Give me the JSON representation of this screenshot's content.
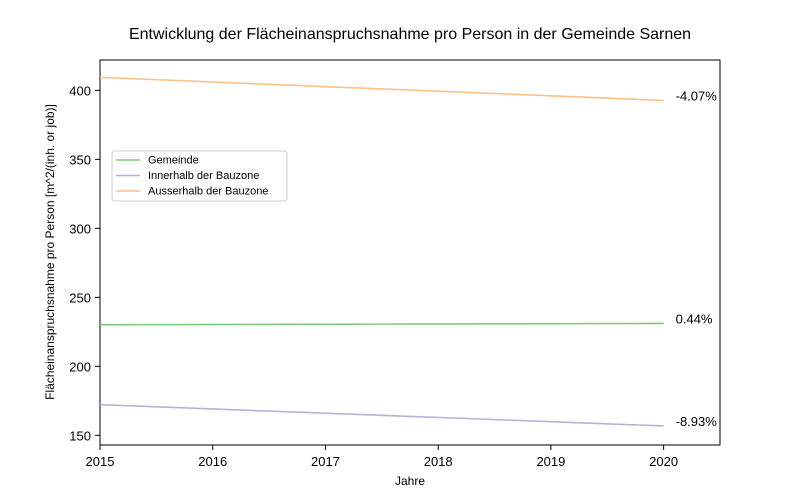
{
  "chart_data": {
    "type": "line",
    "title": "Entwicklung der Flächeinanspruchsnahme pro Person in der Gemeinde Sarnen",
    "xlabel": "Jahre",
    "ylabel": "Flächeinanspruchsnahme pro Person [m^2/(inh. or job)]",
    "x": [
      2015,
      2020
    ],
    "xlim": [
      2015,
      2020.5
    ],
    "ylim": [
      143,
      422
    ],
    "xticks": [
      2015,
      2016,
      2017,
      2018,
      2019,
      2020
    ],
    "yticks": [
      150,
      200,
      250,
      300,
      350,
      400
    ],
    "grid": false,
    "legend_position": "center-left",
    "series": [
      {
        "name": "Gemeinde",
        "values": [
          230.1,
          231.1
        ],
        "color": "#7fc97f",
        "end_label": "0.44%"
      },
      {
        "name": "Innerhalb der Bauzone",
        "values": [
          172.2,
          156.8
        ],
        "color": "#beaed4",
        "end_label": "-8.93%"
      },
      {
        "name": "Ausserhalb der Bauzone",
        "values": [
          409.4,
          392.7
        ],
        "color": "#fdc086",
        "end_label": "-4.07%"
      }
    ]
  }
}
